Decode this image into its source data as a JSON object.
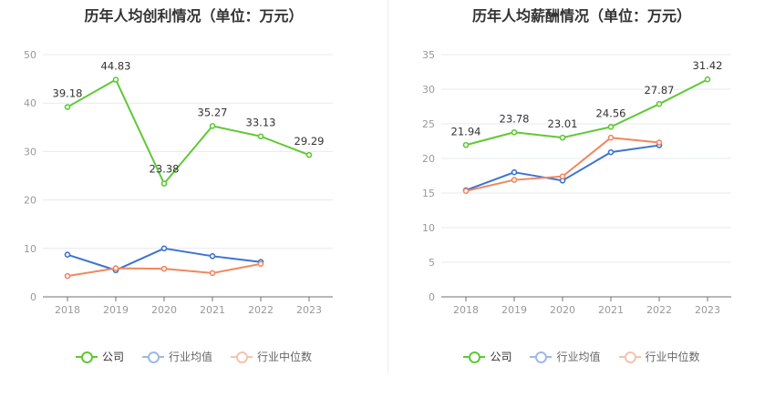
{
  "chart_data": [
    {
      "type": "line",
      "title": "历年人均创利情况（单位：万元）",
      "categories": [
        "2018",
        "2019",
        "2020",
        "2021",
        "2022",
        "2023"
      ],
      "ylim": [
        0,
        50
      ],
      "yticks": [
        0,
        10,
        20,
        30,
        40,
        50
      ],
      "grid": true,
      "legend_position": "bottom",
      "series": [
        {
          "name": "公司",
          "color": "#5ec934",
          "values": [
            39.18,
            44.83,
            23.38,
            35.27,
            33.13,
            29.29
          ],
          "labels": [
            "39.18",
            "44.83",
            "23.38",
            "35.27",
            "33.13",
            "29.29"
          ]
        },
        {
          "name": "行业均值",
          "color": "#3b73d1",
          "values": [
            8.7,
            5.5,
            10.0,
            8.4,
            7.2,
            null
          ]
        },
        {
          "name": "行业中位数",
          "color": "#f0875f",
          "values": [
            4.3,
            5.9,
            5.8,
            4.9,
            6.8,
            null
          ]
        }
      ]
    },
    {
      "type": "line",
      "title": "历年人均薪酬情况（单位：万元）",
      "categories": [
        "2018",
        "2019",
        "2020",
        "2021",
        "2022",
        "2023"
      ],
      "ylim": [
        0,
        35
      ],
      "yticks": [
        0,
        5,
        10,
        15,
        20,
        25,
        30,
        35
      ],
      "grid": true,
      "legend_position": "bottom",
      "series": [
        {
          "name": "公司",
          "color": "#5ec934",
          "values": [
            21.94,
            23.78,
            23.01,
            24.56,
            27.87,
            31.42
          ],
          "labels": [
            "21.94",
            "23.78",
            "23.01",
            "24.56",
            "27.87",
            "31.42"
          ]
        },
        {
          "name": "行业均值",
          "color": "#3b73d1",
          "values": [
            15.4,
            18.0,
            16.8,
            20.9,
            21.9,
            null
          ]
        },
        {
          "name": "行业中位数",
          "color": "#f0875f",
          "values": [
            15.3,
            16.9,
            17.4,
            23.0,
            22.3,
            null
          ]
        }
      ]
    }
  ]
}
